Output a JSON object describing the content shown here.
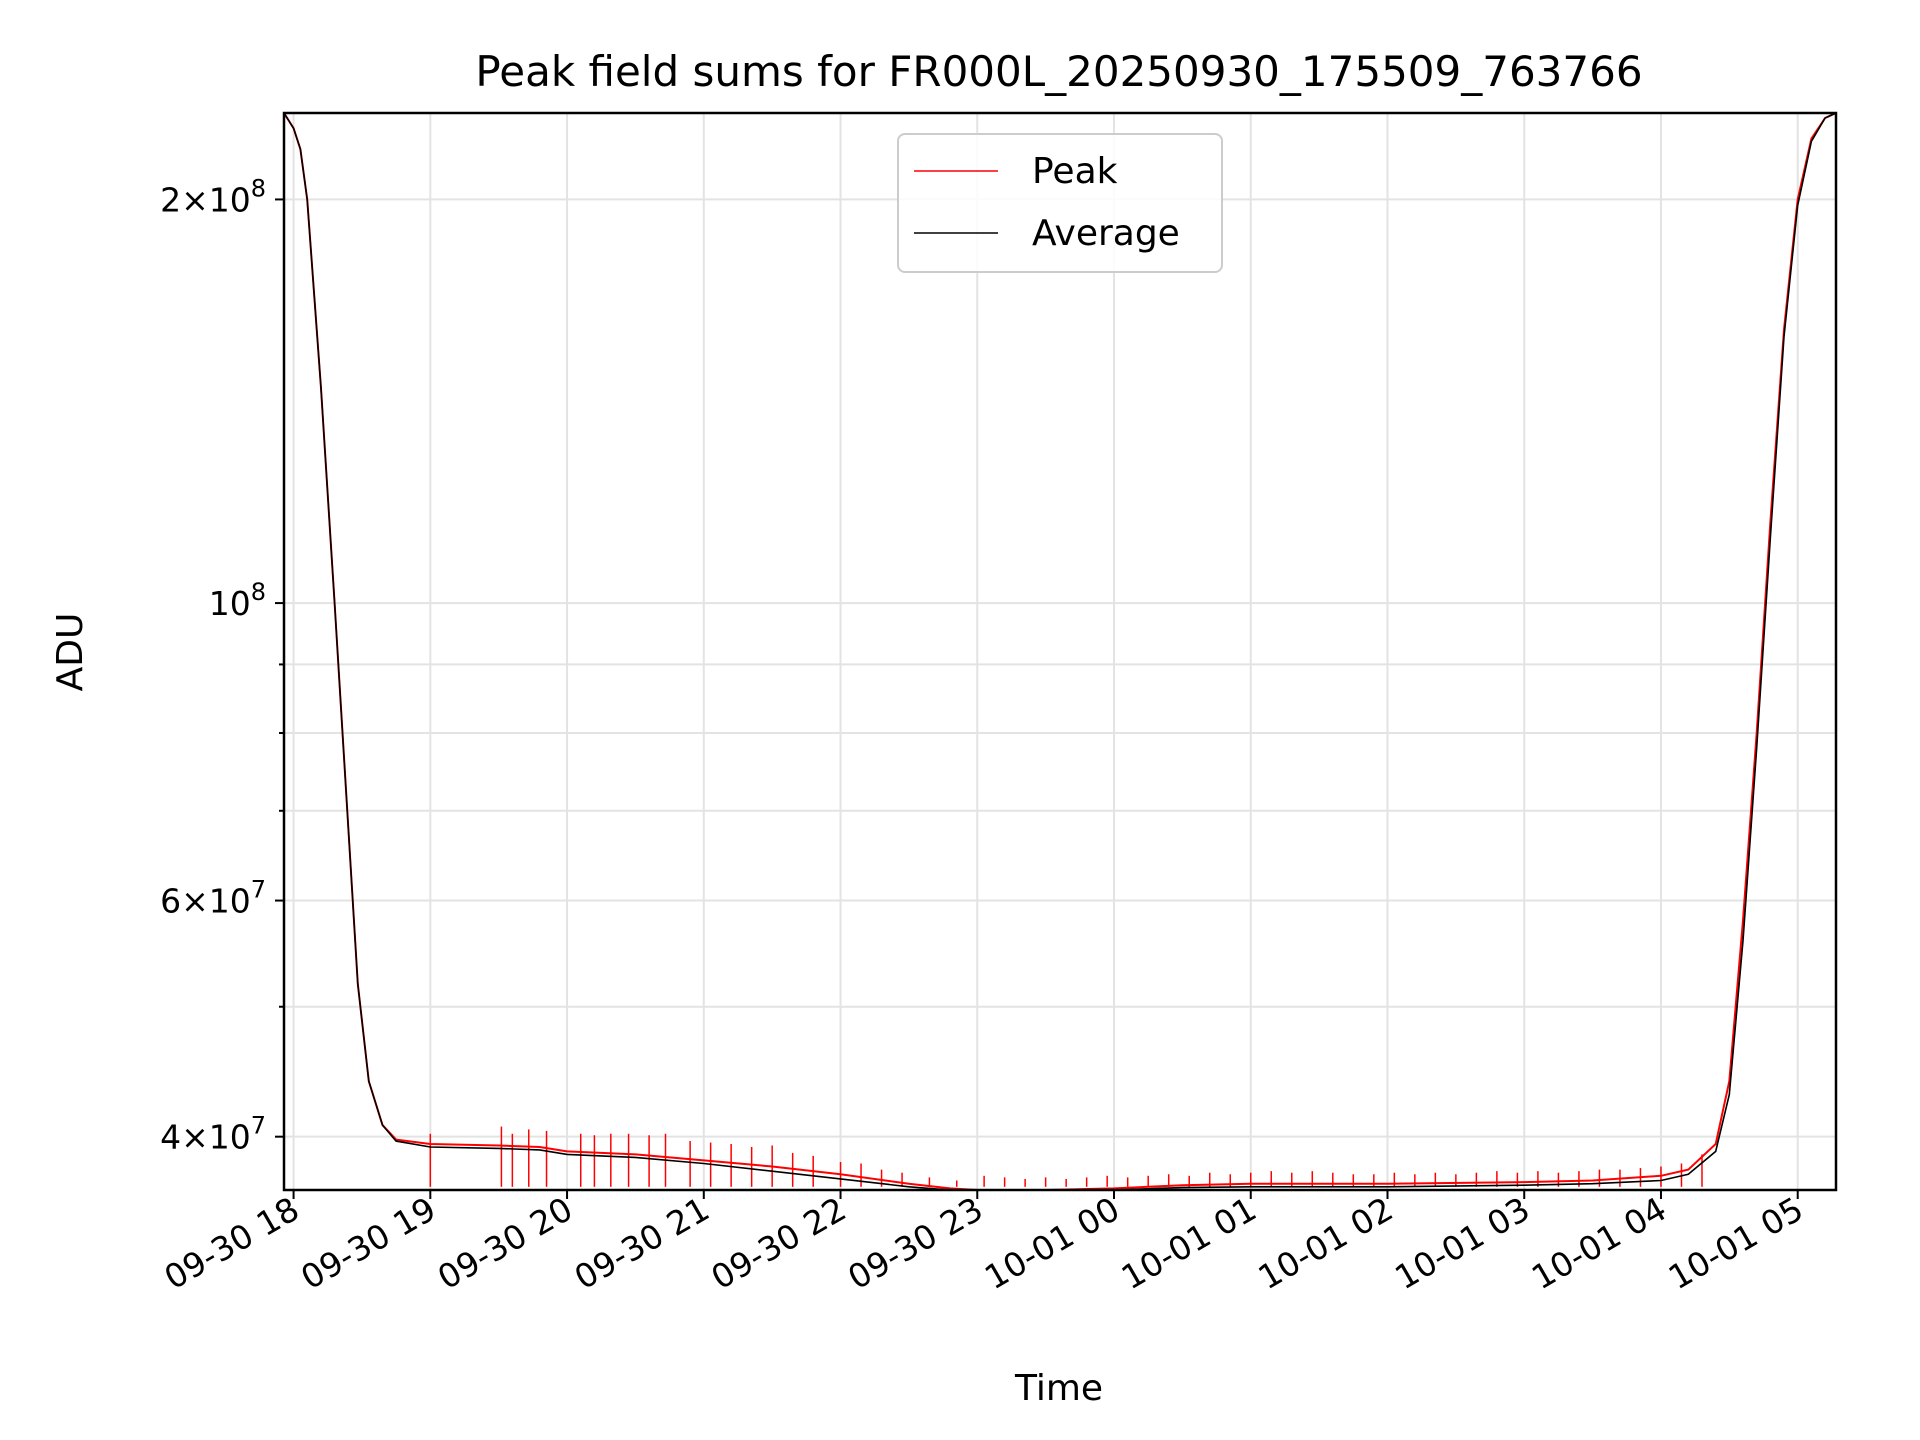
{
  "chart_data": {
    "type": "line",
    "title": "Peak field sums for FR000L_20250930_175509_763766",
    "xlabel": "Time",
    "ylabel": "ADU",
    "yscale": "log",
    "ylim": [
      36500000,
      232000000
    ],
    "xlim_hours": [
      17.93,
      5.28
    ],
    "grid": true,
    "legend_position": "upper center",
    "x_ticks": [
      {
        "hour": 18,
        "label": "09-30 18"
      },
      {
        "hour": 19,
        "label": "09-30 19"
      },
      {
        "hour": 20,
        "label": "09-30 20"
      },
      {
        "hour": 21,
        "label": "09-30 21"
      },
      {
        "hour": 22,
        "label": "09-30 22"
      },
      {
        "hour": 23,
        "label": "09-30 23"
      },
      {
        "hour": 24,
        "label": "10-01 00"
      },
      {
        "hour": 25,
        "label": "10-01 01"
      },
      {
        "hour": 26,
        "label": "10-01 02"
      },
      {
        "hour": 27,
        "label": "10-01 03"
      },
      {
        "hour": 28,
        "label": "10-01 04"
      },
      {
        "hour": 29,
        "label": "10-01 05"
      }
    ],
    "y_ticks": [
      {
        "value": 200000000,
        "mantissa": "2",
        "exponent": "8"
      },
      {
        "value": 100000000,
        "mantissa": "",
        "exponent": "8"
      },
      {
        "value": 60000000,
        "mantissa": "6",
        "exponent": "7"
      },
      {
        "value": 40000000,
        "mantissa": "4",
        "exponent": "7"
      }
    ],
    "y_minor_ticks": [
      50000000,
      70000000,
      80000000,
      90000000
    ],
    "series": [
      {
        "name": "Peak",
        "color": "#ff0000",
        "points": [
          [
            17.93,
            232000000
          ],
          [
            18.0,
            226000000
          ],
          [
            18.05,
            218000000
          ],
          [
            18.1,
            200000000
          ],
          [
            18.2,
            145000000
          ],
          [
            18.3,
            100000000
          ],
          [
            18.4,
            68000000
          ],
          [
            18.47,
            52000000
          ],
          [
            18.55,
            44000000
          ],
          [
            18.65,
            40800000
          ],
          [
            18.75,
            39800000
          ],
          [
            19.0,
            39500000
          ],
          [
            19.5,
            39400000
          ],
          [
            19.8,
            39300000
          ],
          [
            20.0,
            39000000
          ],
          [
            20.5,
            38800000
          ],
          [
            21.0,
            38400000
          ],
          [
            21.5,
            38000000
          ],
          [
            22.0,
            37500000
          ],
          [
            22.5,
            36900000
          ],
          [
            22.8,
            36600000
          ],
          [
            23.0,
            36500000
          ],
          [
            23.5,
            36500000
          ],
          [
            24.0,
            36600000
          ],
          [
            24.5,
            36800000
          ],
          [
            25.0,
            36900000
          ],
          [
            26.0,
            36900000
          ],
          [
            27.0,
            37000000
          ],
          [
            27.5,
            37100000
          ],
          [
            28.0,
            37400000
          ],
          [
            28.2,
            37800000
          ],
          [
            28.4,
            39500000
          ],
          [
            28.5,
            44000000
          ],
          [
            28.6,
            58000000
          ],
          [
            28.7,
            80000000
          ],
          [
            28.8,
            115000000
          ],
          [
            28.9,
            160000000
          ],
          [
            29.0,
            200000000
          ],
          [
            29.1,
            222000000
          ],
          [
            29.2,
            230000000
          ],
          [
            29.28,
            232000000
          ]
        ]
      },
      {
        "name": "Average",
        "color": "#000000",
        "points": [
          [
            17.93,
            232000000
          ],
          [
            18.0,
            226000000
          ],
          [
            18.05,
            218000000
          ],
          [
            18.1,
            200000000
          ],
          [
            18.2,
            145000000
          ],
          [
            18.3,
            100000000
          ],
          [
            18.4,
            68000000
          ],
          [
            18.47,
            52000000
          ],
          [
            18.55,
            44000000
          ],
          [
            18.65,
            40800000
          ],
          [
            18.75,
            39700000
          ],
          [
            19.0,
            39300000
          ],
          [
            19.5,
            39200000
          ],
          [
            19.8,
            39100000
          ],
          [
            20.0,
            38800000
          ],
          [
            20.5,
            38600000
          ],
          [
            21.0,
            38200000
          ],
          [
            21.5,
            37700000
          ],
          [
            22.0,
            37200000
          ],
          [
            22.5,
            36700000
          ],
          [
            22.8,
            36500000
          ],
          [
            23.0,
            36450000
          ],
          [
            23.5,
            36450000
          ],
          [
            24.0,
            36500000
          ],
          [
            24.5,
            36650000
          ],
          [
            25.0,
            36700000
          ],
          [
            26.0,
            36700000
          ],
          [
            27.0,
            36800000
          ],
          [
            27.5,
            36900000
          ],
          [
            28.0,
            37100000
          ],
          [
            28.2,
            37500000
          ],
          [
            28.4,
            39000000
          ],
          [
            28.5,
            43000000
          ],
          [
            28.6,
            56000000
          ],
          [
            28.7,
            78000000
          ],
          [
            28.8,
            112000000
          ],
          [
            28.9,
            158000000
          ],
          [
            29.0,
            198000000
          ],
          [
            29.1,
            221000000
          ],
          [
            29.2,
            230000000
          ],
          [
            29.28,
            232000000
          ]
        ]
      }
    ],
    "peak_spikes": [
      [
        19.0,
        40200000
      ],
      [
        19.52,
        40700000
      ],
      [
        19.6,
        40200000
      ],
      [
        19.72,
        40500000
      ],
      [
        19.85,
        40400000
      ],
      [
        20.1,
        40200000
      ],
      [
        20.2,
        40100000
      ],
      [
        20.32,
        40200000
      ],
      [
        20.45,
        40200000
      ],
      [
        20.6,
        40100000
      ],
      [
        20.72,
        40200000
      ],
      [
        20.9,
        39700000
      ],
      [
        21.05,
        39600000
      ],
      [
        21.2,
        39500000
      ],
      [
        21.35,
        39300000
      ],
      [
        21.5,
        39400000
      ],
      [
        21.65,
        38900000
      ],
      [
        21.8,
        38700000
      ],
      [
        22.0,
        38300000
      ],
      [
        22.15,
        38200000
      ],
      [
        22.3,
        37800000
      ],
      [
        22.45,
        37600000
      ],
      [
        22.65,
        37300000
      ],
      [
        22.85,
        37100000
      ],
      [
        23.05,
        37400000
      ],
      [
        23.2,
        37300000
      ],
      [
        23.35,
        37200000
      ],
      [
        23.5,
        37300000
      ],
      [
        23.65,
        37200000
      ],
      [
        23.8,
        37300000
      ],
      [
        23.95,
        37400000
      ],
      [
        24.1,
        37300000
      ],
      [
        24.25,
        37400000
      ],
      [
        24.4,
        37500000
      ],
      [
        24.55,
        37400000
      ],
      [
        24.7,
        37600000
      ],
      [
        24.85,
        37500000
      ],
      [
        25.0,
        37600000
      ],
      [
        25.15,
        37700000
      ],
      [
        25.3,
        37600000
      ],
      [
        25.45,
        37700000
      ],
      [
        25.6,
        37600000
      ],
      [
        25.75,
        37500000
      ],
      [
        25.9,
        37500000
      ],
      [
        26.05,
        37600000
      ],
      [
        26.2,
        37500000
      ],
      [
        26.35,
        37600000
      ],
      [
        26.5,
        37500000
      ],
      [
        26.65,
        37600000
      ],
      [
        26.8,
        37700000
      ],
      [
        26.95,
        37600000
      ],
      [
        27.1,
        37700000
      ],
      [
        27.25,
        37600000
      ],
      [
        27.4,
        37700000
      ],
      [
        27.55,
        37800000
      ],
      [
        27.7,
        37800000
      ],
      [
        27.85,
        37900000
      ],
      [
        28.0,
        38000000
      ],
      [
        28.15,
        38200000
      ],
      [
        28.3,
        38800000
      ]
    ],
    "legend": [
      {
        "label": "Peak",
        "color": "#ff0000"
      },
      {
        "label": "Average",
        "color": "#000000"
      }
    ]
  }
}
